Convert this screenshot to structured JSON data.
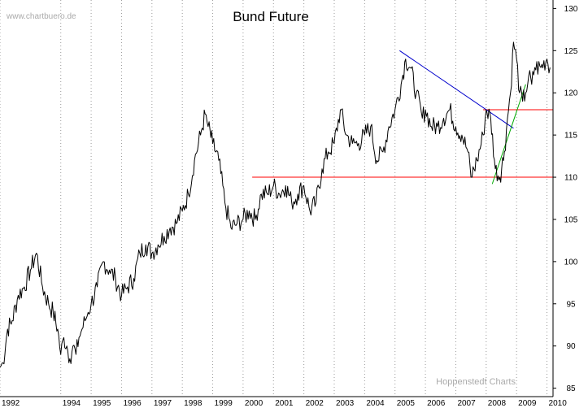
{
  "watermark": "www.chartbuero.de",
  "credit": "Hoppenstedt Charts",
  "chart_data": {
    "type": "line",
    "title": "Bund Future",
    "xlabel": "",
    "ylabel": "",
    "xlim": [
      1992.0,
      2010.2
    ],
    "ylim": [
      84,
      131
    ],
    "x_tick_labels": [
      {
        "label": "1992",
        "value": 1992
      },
      {
        "label": "1994",
        "value": 1994
      },
      {
        "label": "1995",
        "value": 1995
      },
      {
        "label": "1996",
        "value": 1996
      },
      {
        "label": "1997",
        "value": 1997
      },
      {
        "label": "1998",
        "value": 1998
      },
      {
        "label": "1999",
        "value": 1999
      },
      {
        "label": "2000",
        "value": 2000
      },
      {
        "label": "2001",
        "value": 2001
      },
      {
        "label": "2002",
        "value": 2002
      },
      {
        "label": "2003",
        "value": 2003
      },
      {
        "label": "2004",
        "value": 2004
      },
      {
        "label": "2005",
        "value": 2005
      },
      {
        "label": "2006",
        "value": 2006
      },
      {
        "label": "2007",
        "value": 2007
      },
      {
        "label": "2008",
        "value": 2008
      },
      {
        "label": "2009",
        "value": 2009
      },
      {
        "label": "2010",
        "value": 2010
      }
    ],
    "y_ticks": [
      85,
      90,
      95,
      100,
      105,
      110,
      115,
      120,
      125,
      130
    ],
    "grid": "vertical-dotted",
    "y_axis_side": "right",
    "series": [
      {
        "x": [
          1992.0,
          1992.1,
          1992.25,
          1992.4,
          1992.6,
          1992.8,
          1993.0,
          1993.2,
          1993.4,
          1993.6,
          1993.75,
          1993.9,
          1994.0,
          1994.1,
          1994.2,
          1994.3,
          1994.4,
          1994.5,
          1994.6,
          1994.7,
          1994.8,
          1994.9,
          1995.0,
          1995.2,
          1995.4,
          1995.6,
          1995.8,
          1996.0,
          1996.2,
          1996.4,
          1996.6,
          1996.8,
          1997.0,
          1997.2,
          1997.4,
          1997.6,
          1997.8,
          1998.0,
          1998.2,
          1998.4,
          1998.6,
          1998.75,
          1998.85,
          1999.0,
          1999.2,
          1999.4,
          1999.6,
          1999.8,
          2000.0,
          2000.2,
          2000.4,
          2000.6,
          2000.8,
          2001.0,
          2001.2,
          2001.4,
          2001.6,
          2001.8,
          2002.0,
          2002.2,
          2002.4,
          2002.6,
          2002.8,
          2003.0,
          2003.2,
          2003.4,
          2003.6,
          2003.8,
          2004.0,
          2004.2,
          2004.4,
          2004.6,
          2004.8,
          2005.0,
          2005.2,
          2005.35,
          2005.5,
          2005.7,
          2005.9,
          2006.0,
          2006.2,
          2006.4,
          2006.6,
          2006.8,
          2007.0,
          2007.2,
          2007.4,
          2007.5,
          2007.7,
          2007.9,
          2008.0,
          2008.15,
          2008.3,
          2008.45,
          2008.6,
          2008.7,
          2008.8,
          2008.9,
          2009.0,
          2009.1,
          2009.2,
          2009.3,
          2009.4,
          2009.5,
          2009.6,
          2009.8,
          2010.0,
          2010.1
        ],
        "values": [
          87.5,
          88,
          92,
          93,
          96,
          97,
          99,
          101,
          97,
          95,
          94,
          92,
          89,
          91,
          90,
          88.5,
          90,
          89,
          91,
          92,
          93,
          94,
          95,
          97,
          100,
          99,
          98,
          96,
          97,
          98,
          101,
          102,
          101,
          102,
          103,
          104,
          104.5,
          106,
          108,
          112,
          115,
          117.5,
          116,
          114,
          112,
          107,
          104,
          104.5,
          105,
          106,
          105,
          108,
          108,
          109,
          108,
          109,
          107,
          108,
          109,
          106,
          107,
          111,
          113,
          114,
          118,
          115,
          114,
          114,
          115,
          116,
          112,
          113,
          116,
          118,
          121,
          124,
          123,
          120,
          117,
          118,
          116,
          116,
          117,
          118,
          116,
          115,
          113,
          110,
          112,
          115,
          118,
          117,
          111,
          110,
          113,
          117,
          120,
          126,
          124,
          120,
          119,
          120,
          122,
          121,
          123,
          123,
          124,
          123
        ]
      }
    ],
    "trend_lines": [
      {
        "color": "#0000cc",
        "x": [
          2005.15,
          2008.9
        ],
        "y": [
          125,
          115.8
        ]
      },
      {
        "color": "#00aa00",
        "x": [
          2008.2,
          2009.3
        ],
        "y": [
          109.2,
          121
        ]
      }
    ],
    "horizontal_lines": [
      {
        "color": "#ff0000",
        "y": 110,
        "x": [
          2000.3,
          2010.2
        ]
      },
      {
        "color": "#ff0000",
        "y": 118,
        "x": [
          2007.9,
          2010.2
        ]
      }
    ]
  }
}
